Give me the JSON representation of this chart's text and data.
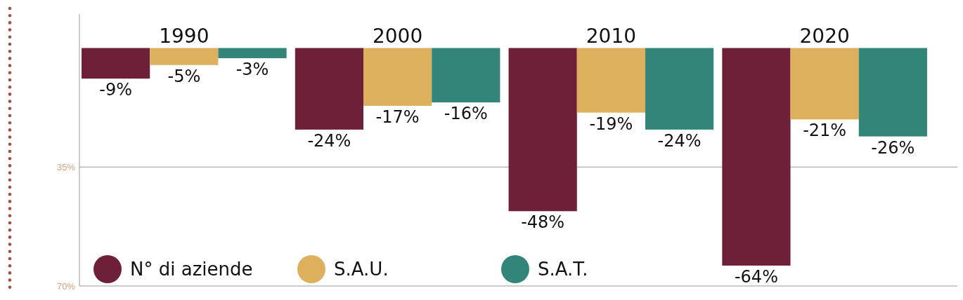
{
  "chart_data": {
    "type": "bar",
    "categories": [
      "1990",
      "2000",
      "2010",
      "2020"
    ],
    "series": [
      {
        "name": "N° di aziende",
        "color": "#6e2039",
        "values": [
          -9,
          -24,
          -48,
          -64
        ],
        "value_labels": [
          "-9%",
          "-24%",
          "-48%",
          "-64%"
        ]
      },
      {
        "name": "S.A.U.",
        "color": "#ddb05e",
        "values": [
          -5,
          -17,
          -19,
          -21
        ],
        "value_labels": [
          "-5%",
          "-17%",
          "-19%",
          "-21%"
        ]
      },
      {
        "name": "S.A.T.",
        "color": "#33857a",
        "values": [
          -3,
          -16,
          -24,
          -26
        ],
        "value_labels": [
          "-3%",
          "-16%",
          "-24%",
          "-26%"
        ]
      }
    ],
    "ylim": [
      -70,
      10
    ],
    "yticks": [
      {
        "value": -35,
        "label": "35%"
      },
      {
        "value": -70,
        "label": "70%"
      }
    ],
    "grid": "y",
    "legend": "bottom left"
  }
}
